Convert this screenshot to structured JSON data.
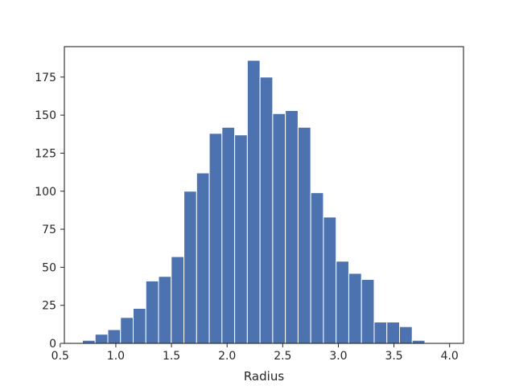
{
  "chart_data": {
    "type": "bar",
    "title": "",
    "xlabel": "Radius",
    "ylabel": "",
    "xlim": [
      0.5375,
      4.125
    ],
    "ylim": [
      0,
      195
    ],
    "grid": false,
    "bar_color": "#4c72b0",
    "bins": [
      {
        "left": 0.7,
        "right": 0.814,
        "count": 2
      },
      {
        "left": 0.814,
        "right": 0.928,
        "count": 6
      },
      {
        "left": 0.928,
        "right": 1.042,
        "count": 9
      },
      {
        "left": 1.042,
        "right": 1.156,
        "count": 17
      },
      {
        "left": 1.156,
        "right": 1.27,
        "count": 23
      },
      {
        "left": 1.27,
        "right": 1.384,
        "count": 41
      },
      {
        "left": 1.384,
        "right": 1.498,
        "count": 44
      },
      {
        "left": 1.498,
        "right": 1.612,
        "count": 57
      },
      {
        "left": 1.612,
        "right": 1.726,
        "count": 100
      },
      {
        "left": 1.726,
        "right": 1.84,
        "count": 112
      },
      {
        "left": 1.84,
        "right": 1.954,
        "count": 138
      },
      {
        "left": 1.954,
        "right": 2.068,
        "count": 142
      },
      {
        "left": 2.068,
        "right": 2.182,
        "count": 137
      },
      {
        "left": 2.182,
        "right": 2.296,
        "count": 186
      },
      {
        "left": 2.296,
        "right": 2.41,
        "count": 175
      },
      {
        "left": 2.41,
        "right": 2.524,
        "count": 151
      },
      {
        "left": 2.524,
        "right": 2.638,
        "count": 153
      },
      {
        "left": 2.638,
        "right": 2.752,
        "count": 142
      },
      {
        "left": 2.752,
        "right": 2.866,
        "count": 99
      },
      {
        "left": 2.866,
        "right": 2.98,
        "count": 83
      },
      {
        "left": 2.98,
        "right": 3.094,
        "count": 54
      },
      {
        "left": 3.094,
        "right": 3.208,
        "count": 46
      },
      {
        "left": 3.208,
        "right": 3.322,
        "count": 42
      },
      {
        "left": 3.322,
        "right": 3.436,
        "count": 14
      },
      {
        "left": 3.436,
        "right": 3.55,
        "count": 14
      },
      {
        "left": 3.55,
        "right": 3.664,
        "count": 11
      },
      {
        "left": 3.664,
        "right": 3.778,
        "count": 2
      }
    ],
    "x_ticks": [
      {
        "value": 0.5,
        "label": "0.5"
      },
      {
        "value": 1.0,
        "label": "1.0"
      },
      {
        "value": 1.5,
        "label": "1.5"
      },
      {
        "value": 2.0,
        "label": "2.0"
      },
      {
        "value": 2.5,
        "label": "2.5"
      },
      {
        "value": 3.0,
        "label": "3.0"
      },
      {
        "value": 3.5,
        "label": "3.5"
      },
      {
        "value": 4.0,
        "label": "4.0"
      }
    ],
    "y_ticks": [
      {
        "value": 0,
        "label": "0"
      },
      {
        "value": 25,
        "label": "25"
      },
      {
        "value": 50,
        "label": "50"
      },
      {
        "value": 75,
        "label": "75"
      },
      {
        "value": 100,
        "label": "100"
      },
      {
        "value": 125,
        "label": "125"
      },
      {
        "value": 150,
        "label": "150"
      },
      {
        "value": 175,
        "label": "175"
      }
    ]
  }
}
